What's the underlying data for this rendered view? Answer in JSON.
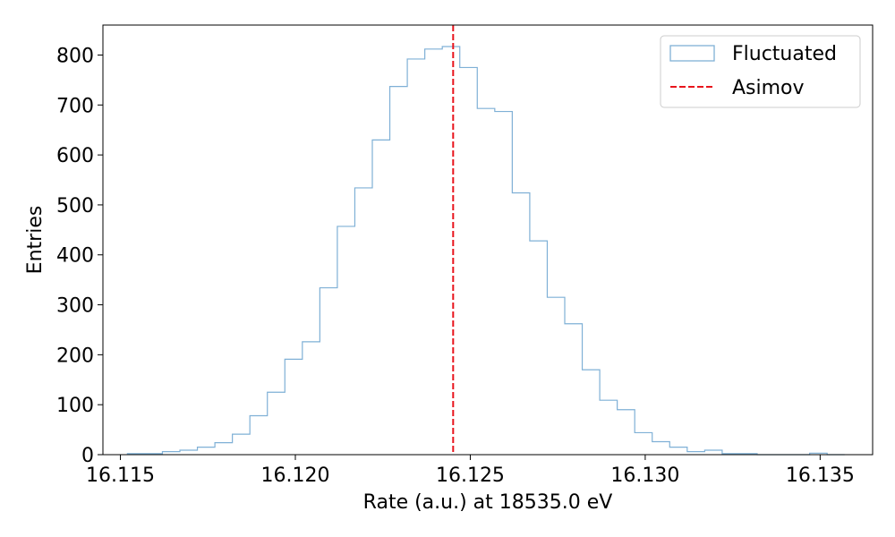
{
  "chart_data": {
    "type": "histogram",
    "title": "",
    "xlabel": "Rate (a.u.) at 18535.0 eV",
    "ylabel": "Entries",
    "xlim": [
      16.1145,
      16.1365
    ],
    "ylim": [
      0,
      860
    ],
    "x_ticks": [
      "16.115",
      "16.120",
      "16.125",
      "16.130",
      "16.135"
    ],
    "y_ticks": [
      "0",
      "100",
      "200",
      "300",
      "400",
      "500",
      "600",
      "700",
      "800"
    ],
    "bin_edges": [
      16.1152,
      16.1157,
      16.1162,
      16.1167,
      16.1172,
      16.1177,
      16.1182,
      16.1187,
      16.1192,
      16.1197,
      16.1202,
      16.1207,
      16.1212,
      16.1217,
      16.1222,
      16.1227,
      16.1232,
      16.1237,
      16.1242,
      16.1247,
      16.1252,
      16.1257,
      16.1262,
      16.1267,
      16.1272,
      16.1277,
      16.1282,
      16.1287,
      16.1292,
      16.1297,
      16.1302,
      16.1307,
      16.1312,
      16.1317,
      16.1322,
      16.1327,
      16.1332,
      16.1337,
      16.1342,
      16.1347,
      16.1352,
      16.1357
    ],
    "series": [
      {
        "name": "Fluctuated",
        "color": "#7fb0d6",
        "values": [
          2,
          2,
          6,
          9,
          15,
          24,
          41,
          78,
          125,
          191,
          226,
          334,
          457,
          534,
          630,
          737,
          792,
          812,
          817,
          775,
          693,
          687,
          524,
          428,
          315,
          262,
          170,
          109,
          90,
          44,
          26,
          15,
          6,
          9,
          2,
          2,
          0,
          0,
          0,
          3,
          0
        ]
      }
    ],
    "reference_lines": [
      {
        "name": "Asimov",
        "x": 16.12451,
        "color": "#e8141c",
        "style": "dashed"
      }
    ],
    "legend": {
      "position": "top-right",
      "entries": [
        "Fluctuated",
        "Asimov"
      ]
    },
    "grid": false
  }
}
